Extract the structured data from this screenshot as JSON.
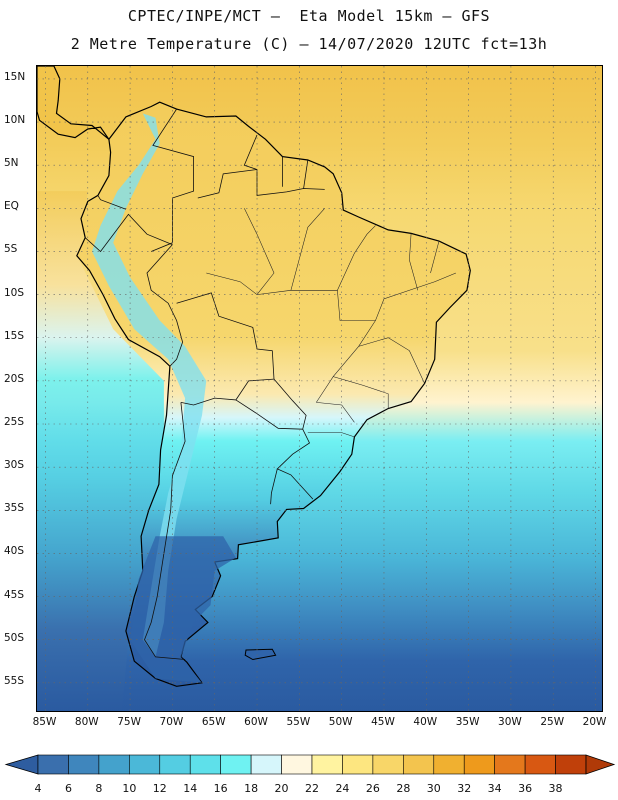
{
  "header": {
    "line1": "CPTEC/INPE/MCT –  Eta Model 15km – GFS",
    "line2": "2 Metre Temperature (C) – 14/07/2020 12UTC fct=13h"
  },
  "axes": {
    "lat_labels": [
      "15N",
      "10N",
      "5N",
      "EQ",
      "5S",
      "10S",
      "15S",
      "20S",
      "25S",
      "30S",
      "35S",
      "40S",
      "45S",
      "50S",
      "55S"
    ],
    "lat_values": [
      15,
      10,
      5,
      0,
      -5,
      -10,
      -15,
      -20,
      -25,
      -30,
      -35,
      -40,
      -45,
      -50,
      -55
    ],
    "lon_labels": [
      "85W",
      "80W",
      "75W",
      "70W",
      "65W",
      "60W",
      "55W",
      "50W",
      "45W",
      "40W",
      "35W",
      "30W",
      "25W",
      "20W"
    ],
    "lon_values": [
      -85,
      -80,
      -75,
      -70,
      -65,
      -60,
      -55,
      -50,
      -45,
      -40,
      -35,
      -30,
      -25,
      -20
    ],
    "lon_range": [
      -86,
      -19
    ],
    "lat_range": [
      -58.5,
      16.5
    ],
    "grid": "dotted"
  },
  "colorbar": {
    "labels": [
      "4",
      "6",
      "8",
      "10",
      "12",
      "14",
      "16",
      "18",
      "20",
      "22",
      "24",
      "26",
      "28",
      "30",
      "32",
      "34",
      "36",
      "38"
    ],
    "colors": [
      "#3a6fad",
      "#3f86bd",
      "#44a2cc",
      "#4bb8d8",
      "#54cde2",
      "#5ee0ea",
      "#6ff2f2",
      "#d6f6fb",
      "#fff7e0",
      "#fff3a0",
      "#fde680",
      "#f8d668",
      "#f3c44e",
      "#f0b030",
      "#ee9a1c",
      "#e4781c",
      "#d85812",
      "#c0400a"
    ],
    "low_color": "#2e5da0",
    "high_color": "#b03a08"
  },
  "map": {
    "land_color": "#f3cc5a",
    "ocean_north_color": "#f3cc5a",
    "ocean_tropic_color": "#f6d870",
    "ocean_mid_color": "#5fd8e6",
    "ocean_south_color": "#2f64aa",
    "andes_color": "#7fe0f0",
    "coast_color": "#000000"
  }
}
